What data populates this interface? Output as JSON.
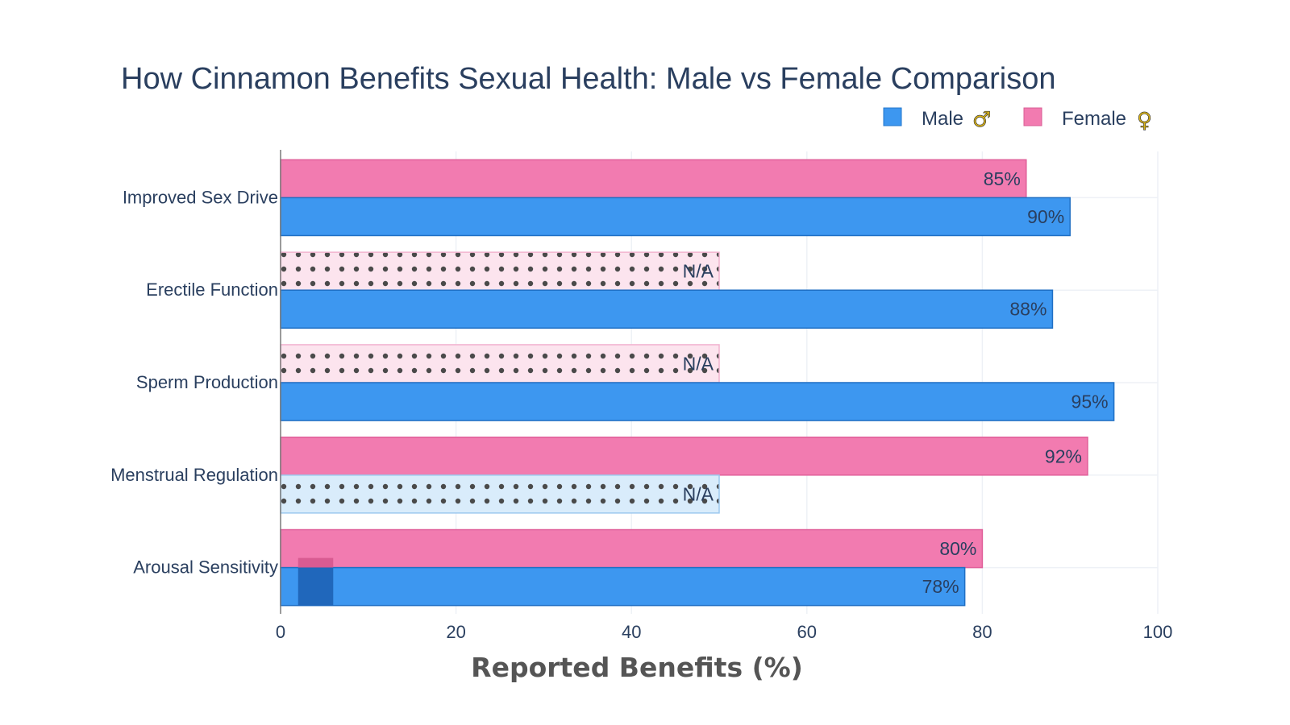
{
  "chart_data": {
    "type": "bar",
    "orientation": "horizontal",
    "title": "How Cinnamon Benefits Sexual Health: Male vs Female Comparison",
    "xlabel": "Reported Benefits (%)",
    "ylabel": "",
    "xlim": [
      0,
      100
    ],
    "x_ticks": [
      0,
      20,
      40,
      60,
      80,
      100
    ],
    "grid": true,
    "legend_position": "top-right",
    "categories": [
      "Improved Sex Drive",
      "Erectile Function",
      "Sperm Production",
      "Menstrual Regulation",
      "Arousal Sensitivity"
    ],
    "series": [
      {
        "name": "Male",
        "symbol": "♂",
        "color": "#3d97f0",
        "values": [
          90,
          88,
          95,
          null,
          78
        ],
        "labels": [
          "90%",
          "88%",
          "95%",
          "N/A",
          "78%"
        ]
      },
      {
        "name": "Female",
        "symbol": "♀",
        "color": "#f27bb0",
        "values": [
          85,
          null,
          null,
          92,
          80
        ],
        "labels": [
          "85%",
          "N/A",
          "N/A",
          "92%",
          "80%"
        ]
      }
    ],
    "not_applicable_placeholder_value": 50,
    "not_applicable_label": "N/A"
  }
}
